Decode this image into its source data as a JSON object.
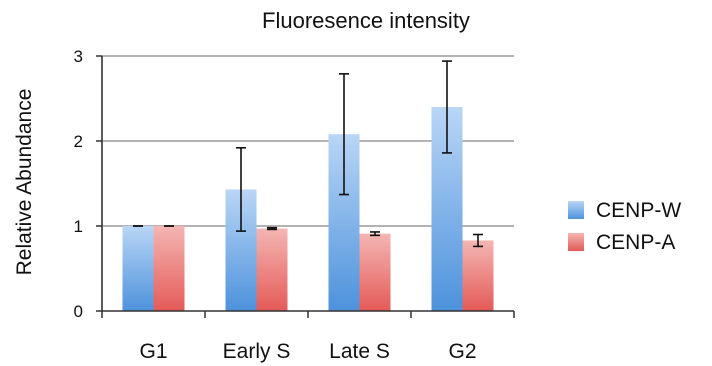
{
  "chart_data": {
    "type": "bar",
    "title": "Fluoresence intensity",
    "xlabel": "",
    "ylabel": "Relative Abundance",
    "categories": [
      "G1",
      "Early S",
      "Late S",
      "G2"
    ],
    "ylim": [
      0,
      3
    ],
    "yticks": [
      0,
      1,
      2,
      3
    ],
    "grid": "horizontal",
    "legend_position": "right",
    "series": [
      {
        "name": "CENP-W",
        "color": "#6aa6e4",
        "values": [
          1.0,
          1.43,
          2.08,
          2.4
        ],
        "error": [
          0.0,
          0.49,
          0.71,
          0.54
        ]
      },
      {
        "name": "CENP-A",
        "color": "#e86e6e",
        "values": [
          1.0,
          0.97,
          0.91,
          0.83
        ],
        "error": [
          0.0,
          0.01,
          0.02,
          0.07
        ]
      }
    ]
  }
}
